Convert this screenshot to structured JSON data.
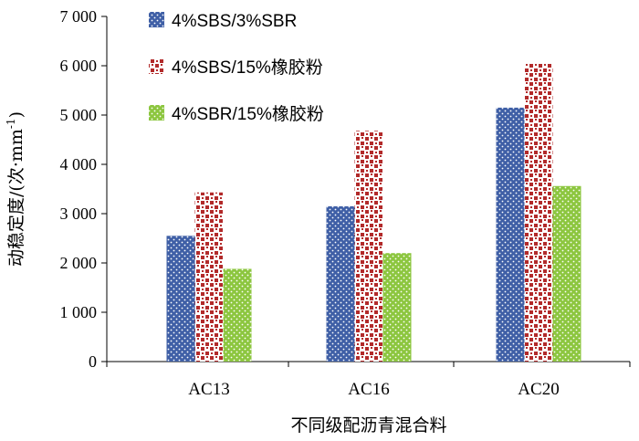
{
  "chart_data": {
    "type": "bar",
    "categories": [
      "AC13",
      "AC16",
      "AC20"
    ],
    "series": [
      {
        "name": "4%SBS/3%SBR",
        "values": [
          2550,
          3150,
          5150
        ],
        "color": "#3f5fa6",
        "pattern": "dots"
      },
      {
        "name": "4%SBS/15%橡胶粉",
        "values": [
          3430,
          4680,
          6040
        ],
        "color": "#b22a2a",
        "pattern": "squares"
      },
      {
        "name": "4%SBR/15%橡胶粉",
        "values": [
          1880,
          2200,
          3560
        ],
        "color": "#8cc63f",
        "pattern": "dots"
      }
    ],
    "ylim": [
      0,
      7000
    ],
    "yticks": [
      0,
      1000,
      2000,
      3000,
      4000,
      5000,
      6000,
      7000
    ],
    "ytick_labels": [
      "0",
      "1 000",
      "2 000",
      "3 000",
      "4 000",
      "5 000",
      "6 000",
      "7 000"
    ],
    "xlabel": "不同级配沥青混合料",
    "ylabel_main": "动稳定度/(次·mm",
    "ylabel_sup": "-1",
    "ylabel_close": ")",
    "legend_position": "top-left",
    "grid": false
  }
}
